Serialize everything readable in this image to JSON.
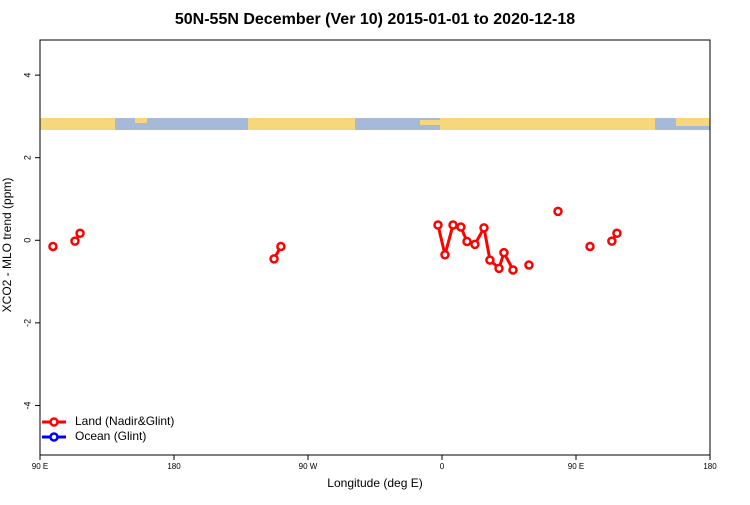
{
  "chart_data": {
    "type": "line",
    "title": "50N-55N December (Ver 10)   2015-01-01 to 2020-12-18",
    "xlabel": "Longitude (deg E)",
    "ylabel": "XCO2 - MLO trend (ppm)",
    "xlim": [
      -270,
      180
    ],
    "ylim": [
      -5.2,
      4.85
    ],
    "xticks": [
      {
        "value": -270,
        "label": "90 E"
      },
      {
        "value": -180,
        "label": "180"
      },
      {
        "value": -90,
        "label": "90 W"
      },
      0,
      {
        "value": 90,
        "label": "90 E"
      },
      {
        "value": 180,
        "label": "180"
      }
    ],
    "yticks": [
      -4,
      -2,
      0,
      2,
      4
    ],
    "legend": "bottom-left",
    "series": [
      {
        "name": "Land (Nadir&Glint)",
        "color": "#ff0000",
        "x": [
          -261.3,
          null,
          -246.5,
          -243.1,
          null,
          -112.8,
          -108.2,
          null,
          -2.7,
          2.0,
          7.4,
          12.7,
          16.8,
          22.1,
          28.2,
          32.2,
          38.3,
          41.6,
          47.7,
          null,
          58.4,
          null,
          77.9,
          null,
          99.4,
          null,
          114.1,
          117.5
        ],
        "values": [
          -0.15,
          null,
          -0.02,
          0.17,
          null,
          -0.45,
          -0.15,
          null,
          0.37,
          -0.35,
          0.37,
          0.32,
          -0.03,
          -0.1,
          0.3,
          -0.48,
          -0.68,
          -0.3,
          -0.72,
          null,
          -0.6,
          null,
          0.7,
          null,
          -0.15,
          null,
          -0.02,
          0.17
        ]
      },
      {
        "name": "Ocean (Glint)",
        "color": "#0000ff",
        "x": [],
        "values": []
      }
    ]
  }
}
